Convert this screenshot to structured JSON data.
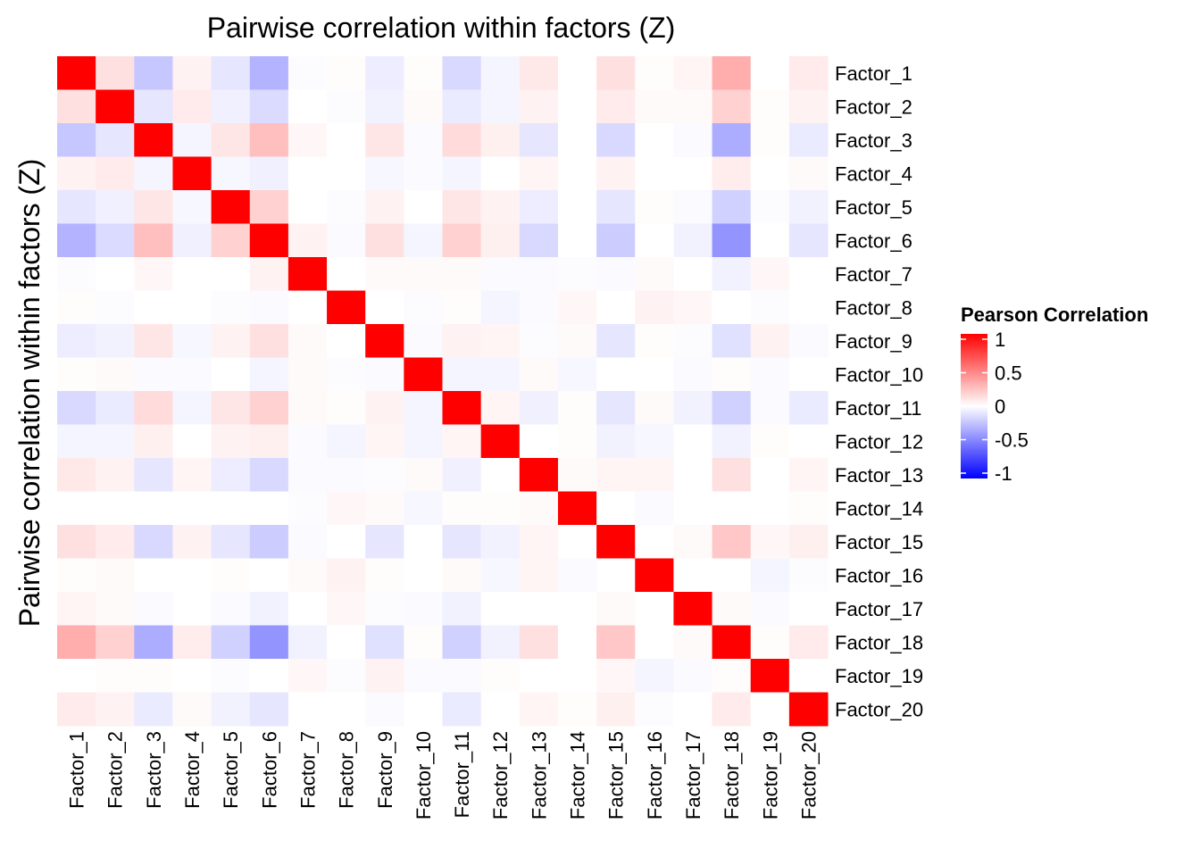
{
  "chart_data": {
    "type": "heatmap",
    "title": "Pairwise correlation within factors (Z)",
    "ylabel": "Pairwise correlation within factors (Z)",
    "xlabel": "",
    "categories": [
      "Factor_1",
      "Factor_2",
      "Factor_3",
      "Factor_4",
      "Factor_5",
      "Factor_6",
      "Factor_7",
      "Factor_8",
      "Factor_9",
      "Factor_10",
      "Factor_11",
      "Factor_12",
      "Factor_13",
      "Factor_14",
      "Factor_15",
      "Factor_16",
      "Factor_17",
      "Factor_18",
      "Factor_19",
      "Factor_20"
    ],
    "matrix": [
      [
        1,
        0.12,
        -0.22,
        0.05,
        -0.1,
        -0.3,
        -0.01,
        0.01,
        -0.07,
        0.01,
        -0.15,
        -0.04,
        0.09,
        0.0,
        0.12,
        0.01,
        0.04,
        0.32,
        0.0,
        0.08
      ],
      [
        0.12,
        1,
        -0.1,
        0.08,
        -0.06,
        -0.14,
        0.0,
        -0.01,
        -0.05,
        0.02,
        -0.08,
        -0.04,
        0.05,
        0.0,
        0.08,
        0.02,
        0.02,
        0.18,
        0.01,
        0.05
      ],
      [
        -0.22,
        -0.1,
        1,
        -0.04,
        0.1,
        0.25,
        0.03,
        0.0,
        0.1,
        -0.02,
        0.14,
        0.06,
        -0.1,
        0.0,
        -0.15,
        0.0,
        -0.02,
        -0.32,
        0.01,
        -0.08
      ],
      [
        0.05,
        0.08,
        -0.04,
        1,
        -0.03,
        -0.06,
        0.0,
        0.0,
        -0.03,
        -0.02,
        -0.04,
        0.0,
        0.04,
        0.0,
        0.05,
        0.0,
        0.0,
        0.07,
        0.0,
        0.02
      ],
      [
        -0.1,
        -0.06,
        0.1,
        -0.03,
        1,
        0.18,
        0.0,
        -0.01,
        0.05,
        0.0,
        0.1,
        0.05,
        -0.07,
        0.0,
        -0.1,
        0.01,
        -0.02,
        -0.18,
        -0.01,
        -0.05
      ],
      [
        -0.3,
        -0.14,
        0.25,
        -0.06,
        0.18,
        1,
        0.05,
        -0.02,
        0.12,
        -0.04,
        0.18,
        0.06,
        -0.15,
        0.0,
        -0.2,
        0.0,
        -0.05,
        -0.42,
        0.0,
        -0.1
      ],
      [
        -0.01,
        0.0,
        0.03,
        0.0,
        0.0,
        0.05,
        1,
        0.0,
        0.02,
        0.02,
        0.02,
        -0.02,
        -0.02,
        -0.01,
        -0.02,
        0.02,
        0.0,
        -0.05,
        0.03,
        0.0
      ],
      [
        0.01,
        -0.01,
        0.0,
        0.0,
        -0.01,
        -0.02,
        0.0,
        1,
        0.0,
        -0.01,
        0.01,
        -0.04,
        -0.02,
        0.03,
        0.0,
        0.05,
        0.03,
        0.0,
        -0.01,
        0.0
      ],
      [
        -0.07,
        -0.05,
        0.1,
        -0.03,
        0.05,
        0.12,
        0.02,
        0.0,
        1,
        -0.02,
        0.05,
        0.04,
        -0.01,
        0.02,
        -0.1,
        0.01,
        -0.01,
        -0.12,
        0.05,
        -0.02
      ],
      [
        0.01,
        0.02,
        -0.02,
        -0.02,
        0.0,
        -0.04,
        0.02,
        -0.01,
        -0.02,
        1,
        -0.04,
        -0.04,
        0.02,
        -0.03,
        0.0,
        0.0,
        -0.02,
        0.01,
        -0.02,
        0.0
      ],
      [
        -0.15,
        -0.08,
        0.14,
        -0.04,
        0.1,
        0.18,
        0.02,
        0.01,
        0.05,
        -0.04,
        1,
        0.04,
        -0.06,
        0.01,
        -0.1,
        0.02,
        -0.05,
        -0.18,
        -0.02,
        -0.08
      ],
      [
        -0.04,
        -0.04,
        0.06,
        0.0,
        0.05,
        0.06,
        -0.02,
        -0.04,
        0.04,
        -0.04,
        0.04,
        1,
        0.0,
        0.01,
        -0.05,
        -0.03,
        0.0,
        -0.05,
        0.01,
        0.0
      ],
      [
        0.09,
        0.05,
        -0.1,
        0.04,
        -0.07,
        -0.15,
        -0.02,
        -0.02,
        -0.01,
        0.02,
        -0.06,
        0.0,
        1,
        0.02,
        0.04,
        0.04,
        0.0,
        0.12,
        0.0,
        0.04
      ],
      [
        0.0,
        0.0,
        0.0,
        0.0,
        0.0,
        0.0,
        -0.01,
        0.03,
        0.02,
        -0.03,
        0.01,
        0.01,
        0.02,
        1,
        0.0,
        -0.02,
        0.0,
        0.0,
        0.0,
        0.01
      ],
      [
        0.12,
        0.08,
        -0.15,
        0.05,
        -0.1,
        -0.2,
        -0.02,
        0.0,
        -0.1,
        0.0,
        -0.1,
        -0.05,
        0.04,
        0.0,
        1,
        0.0,
        0.02,
        0.22,
        0.03,
        0.06
      ],
      [
        0.01,
        0.02,
        0.0,
        0.0,
        0.01,
        0.0,
        0.02,
        0.05,
        0.01,
        0.0,
        0.02,
        -0.03,
        0.04,
        -0.02,
        0.0,
        1,
        0.0,
        0.0,
        -0.04,
        -0.01
      ],
      [
        0.04,
        0.02,
        -0.02,
        0.0,
        -0.02,
        -0.05,
        0.0,
        0.03,
        -0.01,
        -0.02,
        -0.05,
        0.0,
        0.0,
        0.0,
        0.02,
        0.0,
        1,
        0.02,
        -0.02,
        0.0
      ],
      [
        0.32,
        0.18,
        -0.32,
        0.07,
        -0.18,
        -0.42,
        -0.05,
        0.0,
        -0.12,
        0.01,
        -0.18,
        -0.05,
        0.12,
        0.0,
        0.22,
        0.0,
        0.02,
        1,
        0.01,
        0.08
      ],
      [
        0.0,
        0.01,
        0.01,
        0.0,
        -0.01,
        0.0,
        0.03,
        -0.01,
        0.05,
        -0.02,
        -0.02,
        0.01,
        0.0,
        0.0,
        0.03,
        -0.04,
        -0.02,
        0.01,
        1,
        0.0
      ],
      [
        0.08,
        0.05,
        -0.08,
        0.02,
        -0.05,
        -0.1,
        0.0,
        0.0,
        -0.02,
        0.0,
        -0.08,
        0.0,
        0.04,
        0.01,
        0.06,
        -0.01,
        0.0,
        0.08,
        0.0,
        1
      ]
    ],
    "legend": {
      "title": "Pearson Correlation",
      "range": [
        -1,
        1
      ],
      "ticks": [
        {
          "value": 1,
          "label": "1"
        },
        {
          "value": 0.5,
          "label": "0.5"
        },
        {
          "value": 0,
          "label": "0"
        },
        {
          "value": -0.5,
          "label": "-0.5"
        },
        {
          "value": -1,
          "label": "-1"
        }
      ],
      "colors": {
        "high": "#ff0000",
        "mid": "#ffffff",
        "low": "#0000ff"
      }
    }
  }
}
